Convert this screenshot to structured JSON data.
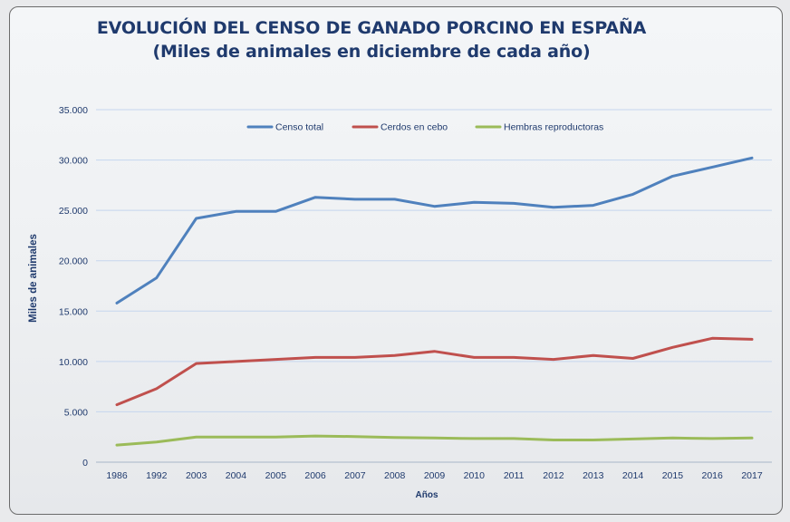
{
  "chart_data": {
    "type": "line",
    "title": "EVOLUCIÓN DEL CENSO DE GANADO PORCINO EN ESPAÑA",
    "subtitle": "(Miles de animales en diciembre de cada año)",
    "xlabel": "Años",
    "ylabel": "Miles de animales",
    "categories": [
      "1986",
      "1992",
      "2003",
      "2004",
      "2005",
      "2006",
      "2007",
      "2008",
      "2009",
      "2010",
      "2011",
      "2012",
      "2013",
      "2014",
      "2015",
      "2016",
      "2017"
    ],
    "ylim": [
      0,
      35000
    ],
    "yticks": [
      0,
      5000,
      10000,
      15000,
      20000,
      25000,
      30000,
      35000
    ],
    "ytick_labels": [
      "0",
      "5.000",
      "10.000",
      "15.000",
      "20.000",
      "25.000",
      "30.000",
      "35.000"
    ],
    "grid": true,
    "legend_position": "top",
    "series": [
      {
        "name": "Censo total",
        "color": "#4f81bd",
        "values": [
          15800,
          18300,
          24200,
          24900,
          24900,
          26300,
          26100,
          26100,
          25400,
          25800,
          25700,
          25300,
          25500,
          26600,
          28400,
          29300,
          30200
        ]
      },
      {
        "name": "Cerdos en cebo",
        "color": "#c0504d",
        "values": [
          5700,
          7300,
          9800,
          10000,
          10200,
          10400,
          10400,
          10600,
          11000,
          10400,
          10400,
          10200,
          10600,
          10300,
          11400,
          12300,
          12200
        ]
      },
      {
        "name": "Hembras reproductoras",
        "color": "#9bbb59",
        "values": [
          1700,
          2000,
          2500,
          2500,
          2500,
          2600,
          2550,
          2450,
          2400,
          2350,
          2350,
          2200,
          2200,
          2300,
          2400,
          2350,
          2400
        ]
      }
    ]
  }
}
